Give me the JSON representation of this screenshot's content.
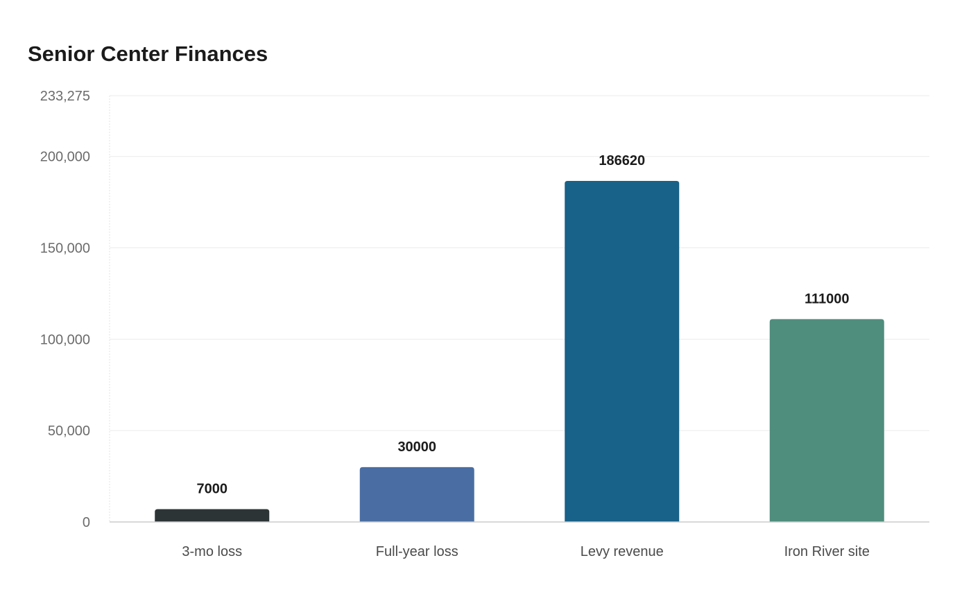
{
  "chart_data": {
    "type": "bar",
    "title": "Senior Center Finances",
    "categories": [
      "3-mo loss",
      "Full-year loss",
      "Levy revenue",
      "Iron River site"
    ],
    "values": [
      7000,
      30000,
      186620,
      111000
    ],
    "data_labels": [
      "7000",
      "30000",
      "186620",
      "111000"
    ],
    "colors": [
      "#2d3436",
      "#4a6ea3",
      "#186188",
      "#4f8d7c"
    ],
    "ylim": [
      0,
      233275
    ],
    "yticks": [
      0,
      50000,
      100000,
      150000,
      200000,
      233275
    ],
    "ytick_labels": [
      "0",
      "50,000",
      "100,000",
      "150,000",
      "200,000",
      "233,275"
    ],
    "xlabel": "",
    "ylabel": "",
    "grid": true,
    "legend": "none"
  }
}
